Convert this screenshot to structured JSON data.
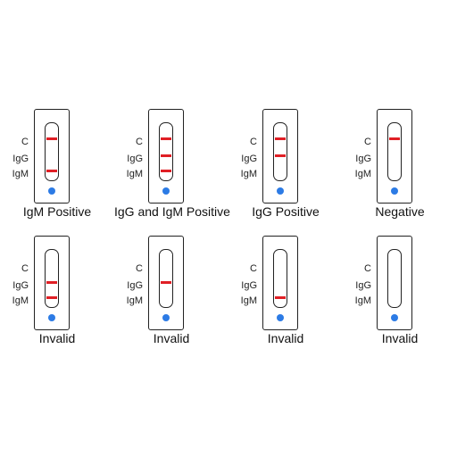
{
  "line_labels": {
    "c": "C",
    "igg": "IgG",
    "igm": "IgM"
  },
  "colors": {
    "band": "#e01f25",
    "sample_well": "#2c7be5",
    "outline": "#222222"
  },
  "tests": [
    {
      "result": "IgM Positive",
      "bands": {
        "c": true,
        "igg": false,
        "igm": true
      }
    },
    {
      "result": "IgG and IgM Positive",
      "bands": {
        "c": true,
        "igg": true,
        "igm": true
      }
    },
    {
      "result": "IgG Positive",
      "bands": {
        "c": true,
        "igg": true,
        "igm": false
      }
    },
    {
      "result": "Negative",
      "bands": {
        "c": true,
        "igg": false,
        "igm": false
      }
    },
    {
      "result": "Invalid",
      "bands": {
        "c": false,
        "igg": true,
        "igm": true
      }
    },
    {
      "result": "Invalid",
      "bands": {
        "c": false,
        "igg": true,
        "igm": false
      }
    },
    {
      "result": "Invalid",
      "bands": {
        "c": false,
        "igg": false,
        "igm": true
      }
    },
    {
      "result": "Invalid",
      "bands": {
        "c": false,
        "igg": false,
        "igm": false
      }
    }
  ]
}
